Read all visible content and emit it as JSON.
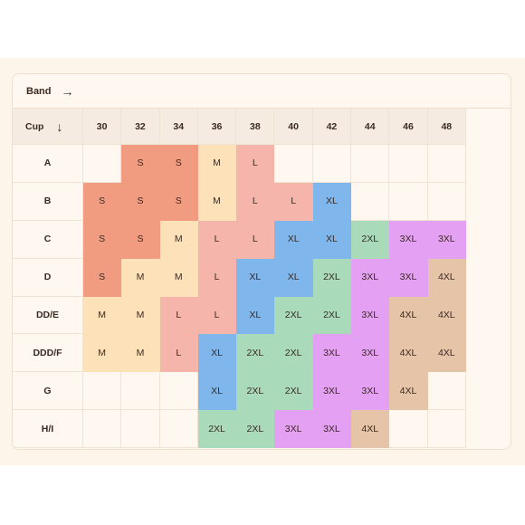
{
  "header": {
    "band_label": "Band",
    "band_arrow": "→",
    "cup_label": "Cup",
    "cup_arrow": "↓"
  },
  "bands": [
    "30",
    "32",
    "34",
    "36",
    "38",
    "40",
    "42",
    "44",
    "46",
    "48"
  ],
  "rows": [
    {
      "cup": "A",
      "cells": [
        "",
        "S",
        "S",
        "M",
        "L",
        "",
        "",
        "",
        "",
        ""
      ]
    },
    {
      "cup": "B",
      "cells": [
        "S",
        "S",
        "S",
        "M",
        "L",
        "L",
        "XL",
        "",
        "",
        ""
      ]
    },
    {
      "cup": "C",
      "cells": [
        "S",
        "S",
        "M",
        "L",
        "L",
        "XL",
        "XL",
        "2XL",
        "3XL",
        "3XL"
      ]
    },
    {
      "cup": "D",
      "cells": [
        "S",
        "M",
        "M",
        "L",
        "XL",
        "XL",
        "2XL",
        "3XL",
        "3XL",
        "4XL"
      ]
    },
    {
      "cup": "DD/E",
      "cells": [
        "M",
        "M",
        "L",
        "L",
        "XL",
        "2XL",
        "2XL",
        "3XL",
        "4XL",
        "4XL"
      ]
    },
    {
      "cup": "DDD/F",
      "cells": [
        "M",
        "M",
        "L",
        "XL",
        "2XL",
        "2XL",
        "3XL",
        "3XL",
        "4XL",
        "4XL"
      ]
    },
    {
      "cup": "G",
      "cells": [
        "",
        "",
        "",
        "XL",
        "2XL",
        "2XL",
        "3XL",
        "3XL",
        "4XL",
        ""
      ]
    },
    {
      "cup": "H/I",
      "cells": [
        "",
        "",
        "",
        "2XL",
        "2XL",
        "3XL",
        "3XL",
        "4XL",
        "",
        ""
      ]
    }
  ],
  "size_colors": {
    "S": "#f19b80",
    "M": "#fde1b8",
    "L": "#f6b5aa",
    "XL": "#7fb6ec",
    "2XL": "#a9dbbb",
    "3XL": "#e4a0f2",
    "4XL": "#e6c4a8"
  }
}
